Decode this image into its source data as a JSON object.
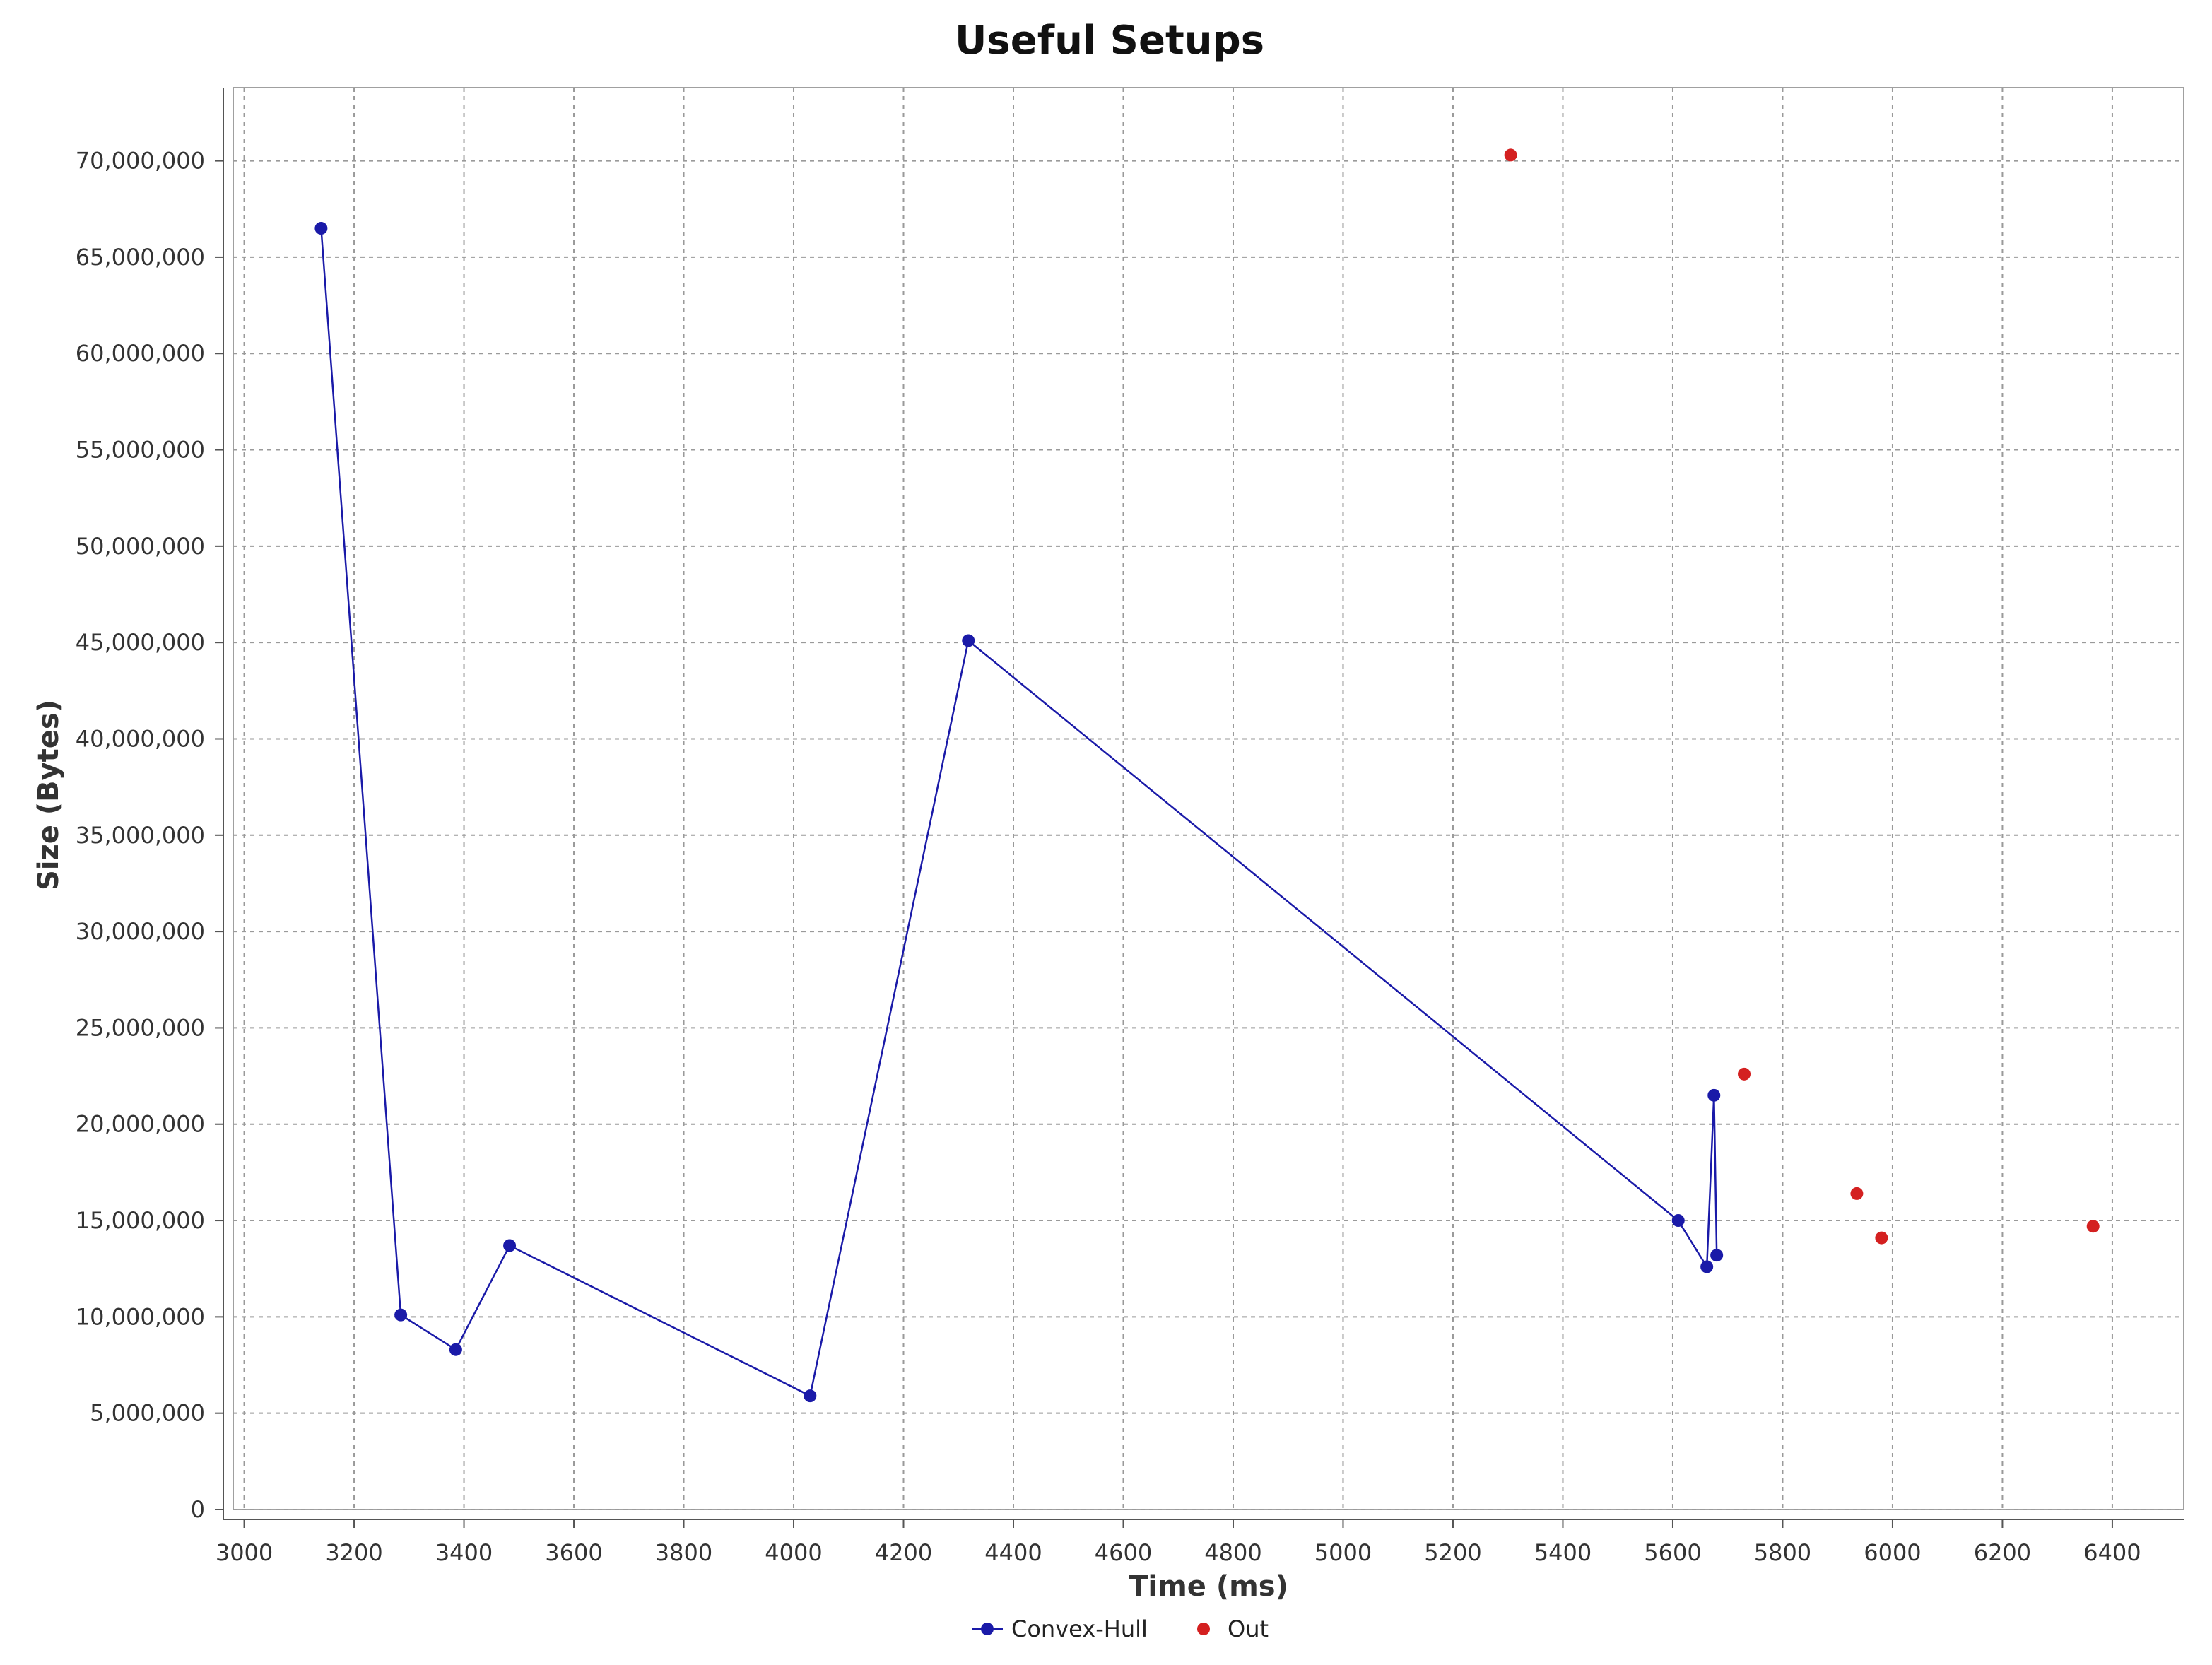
{
  "chart_data": {
    "type": "scatter",
    "title": "Useful Setups",
    "xlabel": "Time (ms)",
    "ylabel": "Size (Bytes)",
    "xlim": [
      2980,
      6530
    ],
    "ylim": [
      0,
      73800000
    ],
    "x_ticks": [
      3000,
      3200,
      3400,
      3600,
      3800,
      4000,
      4200,
      4400,
      4600,
      4800,
      5000,
      5200,
      5400,
      5600,
      5800,
      6000,
      6200,
      6400
    ],
    "y_ticks": [
      0,
      5000000,
      10000000,
      15000000,
      20000000,
      25000000,
      30000000,
      35000000,
      40000000,
      45000000,
      50000000,
      55000000,
      60000000,
      65000000,
      70000000
    ],
    "x_tick_labels": [
      "3000",
      "3200",
      "3400",
      "3600",
      "3800",
      "4000",
      "4200",
      "4400",
      "4600",
      "4800",
      "5000",
      "5200",
      "5400",
      "5600",
      "5800",
      "6000",
      "6200",
      "6400"
    ],
    "y_tick_labels": [
      "0",
      "5,000,000",
      "10,000,000",
      "15,000,000",
      "20,000,000",
      "25,000,000",
      "30,000,000",
      "35,000,000",
      "40,000,000",
      "45,000,000",
      "50,000,000",
      "55,000,000",
      "60,000,000",
      "65,000,000",
      "70,000,000"
    ],
    "grid": true,
    "legend_position": "bottom-center",
    "series": [
      {
        "name": "Convex-Hull",
        "color": "#1a1aa8",
        "connected": true,
        "points": [
          [
            3140,
            66500000
          ],
          [
            3285,
            10100000
          ],
          [
            3385,
            8300000
          ],
          [
            3483,
            13700000
          ],
          [
            4030,
            5900000
          ],
          [
            4318,
            45100000
          ],
          [
            5610,
            15000000
          ],
          [
            5662,
            12600000
          ],
          [
            5675,
            21500000
          ],
          [
            5680,
            13200000
          ]
        ]
      },
      {
        "name": "Out",
        "color": "#d42020",
        "connected": false,
        "points": [
          [
            5305,
            70300000
          ],
          [
            5730,
            22600000
          ],
          [
            5935,
            16400000
          ],
          [
            5980,
            14100000
          ],
          [
            6365,
            14700000
          ]
        ]
      }
    ]
  }
}
